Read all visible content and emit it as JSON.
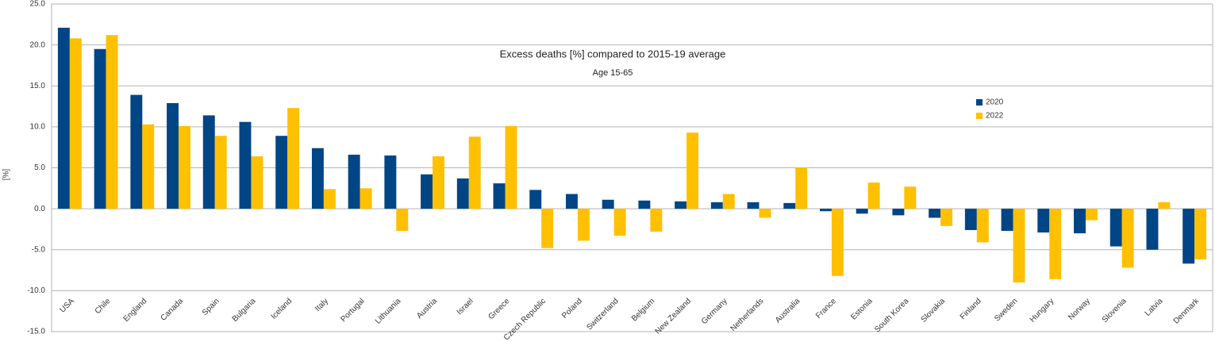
{
  "chart_data": {
    "type": "bar",
    "title": "Excess deaths [%] compared to 2015-19 average",
    "subtitle": "Age 15-65",
    "y_label": "[%]",
    "categories": [
      "USA",
      "Chile",
      "England",
      "Canada",
      "Spain",
      "Bulgaria",
      "Iceland",
      "Italy",
      "Portugal",
      "Lithuania",
      "Austria",
      "Israel",
      "Greece",
      "Czech Republic",
      "Poland",
      "Switzerland",
      "Belgium",
      "New Zealand",
      "Germany",
      "Netherlands",
      "Australia",
      "France",
      "Estonia",
      "South Korea",
      "Slovakia",
      "Finland",
      "Sweden",
      "Hungary",
      "Norway",
      "Slovenia",
      "Latvia",
      "Denmark"
    ],
    "series": [
      {
        "name": "2020",
        "color": "#004586",
        "values": [
          22.1,
          19.5,
          13.9,
          12.9,
          11.4,
          10.6,
          8.9,
          7.4,
          6.6,
          6.5,
          4.2,
          3.7,
          3.1,
          2.3,
          1.8,
          1.1,
          1.0,
          0.9,
          0.8,
          0.8,
          0.7,
          -0.3,
          -0.6,
          -0.8,
          -1.1,
          -2.6,
          -2.7,
          -2.9,
          -3.0,
          -4.6,
          -5.0,
          -6.7
        ]
      },
      {
        "name": "2022",
        "color": "#ffc000",
        "values": [
          20.8,
          21.2,
          10.3,
          10.1,
          8.9,
          6.4,
          12.3,
          2.4,
          2.5,
          -2.7,
          6.4,
          8.8,
          10.1,
          -4.8,
          -3.9,
          -3.3,
          -2.8,
          9.3,
          1.8,
          -1.1,
          5.0,
          -8.2,
          3.2,
          2.7,
          -2.1,
          -4.1,
          -9.0,
          -8.6,
          -1.4,
          -7.2,
          0.8,
          -6.2
        ]
      }
    ],
    "ylim": [
      -15,
      25
    ],
    "yticks": [
      {
        "value": -15,
        "label": "-15.0"
      },
      {
        "value": -10,
        "label": "-10.0"
      },
      {
        "value": -5,
        "label": "-5.0"
      },
      {
        "value": 0,
        "label": "0.0"
      },
      {
        "value": 5,
        "label": "5.0"
      },
      {
        "value": 10,
        "label": "10.0"
      },
      {
        "value": 15,
        "label": "15.0"
      },
      {
        "value": 20,
        "label": "20.0"
      },
      {
        "value": 25,
        "label": "25.0"
      }
    ],
    "grid": true,
    "legend_position": "upper right"
  }
}
